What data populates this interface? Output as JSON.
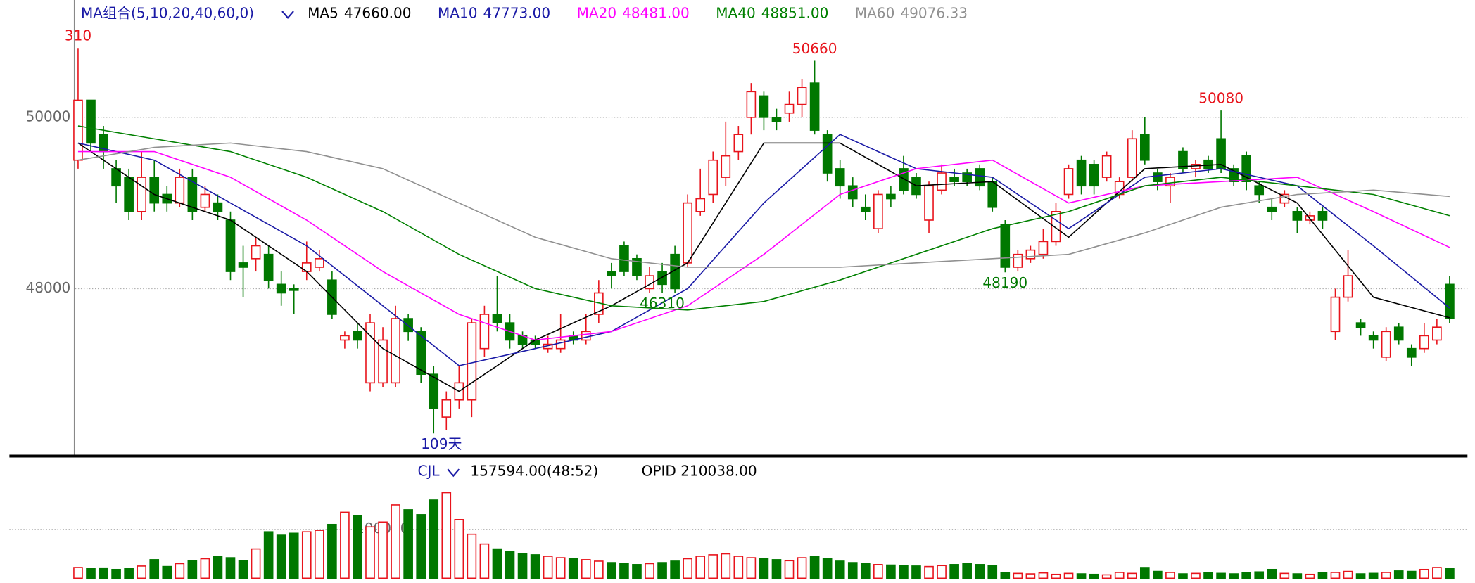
{
  "chart_data": {
    "type": "candlestick",
    "title": "MA组合(5,10,20,40,60,0)",
    "up_color": "#e8141c",
    "down_color": "#007800",
    "ylim": [
      46100,
      51370
    ],
    "yticks": [
      48000,
      50000
    ],
    "grid": true,
    "open": [
      49500,
      50200,
      49800,
      49400,
      49300,
      48900,
      49300,
      49100,
      49000,
      49300,
      48950,
      49000,
      48800,
      48300,
      48350,
      48400,
      48050,
      48000,
      48200,
      48250,
      48100,
      47400,
      47500,
      46900,
      46900,
      46900,
      47650,
      47500,
      47000,
      46500,
      46700,
      46700,
      47300,
      47700,
      47600,
      47450,
      47400,
      47300,
      47300,
      47450,
      47400,
      47700,
      48200,
      48500,
      48350,
      48000,
      48200,
      48400,
      48300,
      48900,
      49100,
      49300,
      49600,
      50000,
      50250,
      50000,
      50050,
      50150,
      50400,
      49800,
      49400,
      49200,
      48950,
      48700,
      49100,
      49400,
      49300,
      48800,
      49150,
      49300,
      49350,
      49400,
      49250,
      48750,
      48250,
      48350,
      48400,
      48550,
      49100,
      49500,
      49450,
      49300,
      49100,
      49300,
      49800,
      49350,
      49200,
      49600,
      49400,
      49500,
      49750,
      49400,
      49550,
      49200,
      48950,
      49000,
      48900,
      48800,
      48900,
      47500,
      47900,
      47600,
      47450,
      47200,
      47550,
      47300,
      47300,
      47400,
      48050
    ],
    "high": [
      50810,
      50200,
      49900,
      49500,
      49400,
      49600,
      49500,
      49200,
      49400,
      49400,
      49200,
      49100,
      48900,
      48500,
      48600,
      48500,
      48200,
      48050,
      48550,
      48450,
      48200,
      47500,
      47600,
      47700,
      47550,
      47800,
      47700,
      47550,
      47100,
      46800,
      47100,
      47650,
      47800,
      48150,
      47700,
      47500,
      47450,
      47450,
      47700,
      47500,
      47700,
      48100,
      48300,
      48550,
      48400,
      48250,
      48300,
      48500,
      49100,
      49400,
      49600,
      49950,
      49900,
      50400,
      50300,
      50100,
      50300,
      50450,
      50660,
      49850,
      49500,
      49300,
      49100,
      49150,
      49200,
      49550,
      49350,
      49250,
      49450,
      49400,
      49400,
      49450,
      49300,
      48800,
      48450,
      48500,
      48700,
      49000,
      49450,
      49550,
      49500,
      49600,
      49300,
      49850,
      50000,
      49400,
      49350,
      49650,
      49500,
      49550,
      50080,
      49450,
      49600,
      49250,
      49050,
      49150,
      48950,
      48900,
      48950,
      48000,
      48450,
      47650,
      47500,
      47550,
      47600,
      47350,
      47600,
      47650,
      48150
    ],
    "low": [
      49400,
      49600,
      49400,
      49000,
      48800,
      48800,
      48900,
      48900,
      48950,
      48800,
      48900,
      48800,
      48100,
      47900,
      48200,
      48000,
      47800,
      47700,
      48100,
      48200,
      47650,
      47300,
      47300,
      46800,
      46850,
      46850,
      47390,
      46900,
      46310,
      46350,
      46600,
      46500,
      47200,
      47500,
      47300,
      47300,
      47300,
      47250,
      47250,
      47350,
      47350,
      47600,
      48000,
      48150,
      48100,
      47950,
      47950,
      47950,
      48250,
      48850,
      49000,
      49200,
      49500,
      49800,
      49850,
      49850,
      49950,
      50000,
      49800,
      49250,
      49050,
      48950,
      48800,
      48650,
      48950,
      49100,
      49050,
      48650,
      49100,
      49200,
      49200,
      49150,
      48900,
      48190,
      48200,
      48300,
      48350,
      48500,
      49050,
      49100,
      49100,
      49250,
      49050,
      49250,
      49450,
      49150,
      49000,
      49350,
      49300,
      49350,
      49350,
      49200,
      49150,
      49000,
      48800,
      48950,
      48650,
      48750,
      48700,
      47400,
      47850,
      47450,
      47300,
      47150,
      47350,
      47100,
      47250,
      47350,
      47600
    ],
    "close": [
      50200,
      49700,
      49600,
      49200,
      48900,
      49300,
      49000,
      49000,
      49300,
      48900,
      49100,
      48900,
      48200,
      48250,
      48500,
      48100,
      47950,
      47980,
      48300,
      48350,
      47700,
      47450,
      47400,
      47600,
      47400,
      47650,
      47500,
      47000,
      46600,
      46700,
      46900,
      47600,
      47700,
      47600,
      47400,
      47350,
      47350,
      47350,
      47400,
      47400,
      47500,
      47950,
      48150,
      48200,
      48150,
      48150,
      48050,
      48000,
      49000,
      49050,
      49500,
      49550,
      49800,
      50300,
      50000,
      49950,
      50150,
      50350,
      49850,
      49350,
      49200,
      49050,
      48900,
      49100,
      49050,
      49150,
      49100,
      49200,
      49350,
      49250,
      49250,
      49200,
      48950,
      48250,
      48400,
      48450,
      48550,
      48900,
      49400,
      49200,
      49200,
      49550,
      49250,
      49750,
      49500,
      49250,
      49300,
      49400,
      49450,
      49400,
      49400,
      49250,
      49250,
      49100,
      48900,
      49100,
      48800,
      48850,
      48800,
      47900,
      48150,
      47550,
      47400,
      47500,
      47400,
      47200,
      47450,
      47550,
      47650
    ],
    "ma_x": [
      0,
      6,
      12,
      18,
      24,
      30,
      36,
      42,
      48,
      54,
      60,
      66,
      72,
      78,
      84,
      90,
      96,
      102,
      108
    ],
    "series": [
      {
        "name": "MA5",
        "value_label": "47660.00",
        "color": "#000000",
        "values": [
          49700,
          49100,
          48800,
          48200,
          47300,
          46800,
          47400,
          47800,
          48300,
          49700,
          49700,
          49200,
          49250,
          48600,
          49400,
          49450,
          49000,
          47900,
          47660
        ]
      },
      {
        "name": "MA10",
        "value_label": "47773.00",
        "color": "#1a1aa6",
        "values": [
          49700,
          49500,
          49000,
          48500,
          47800,
          47100,
          47300,
          47500,
          48000,
          49000,
          49800,
          49400,
          49300,
          48700,
          49300,
          49400,
          49200,
          48500,
          47773
        ]
      },
      {
        "name": "MA20",
        "value_label": "48481.00",
        "color": "#ff00ff",
        "values": [
          49600,
          49600,
          49300,
          48800,
          48200,
          47700,
          47400,
          47500,
          47800,
          48400,
          49100,
          49400,
          49500,
          49000,
          49200,
          49250,
          49300,
          48900,
          48481
        ]
      },
      {
        "name": "MA40",
        "value_label": "48851.00",
        "color": "#008000",
        "values": [
          49900,
          49750,
          49600,
          49300,
          48900,
          48400,
          48000,
          47800,
          47750,
          47850,
          48100,
          48400,
          48700,
          48900,
          49200,
          49300,
          49200,
          49100,
          48851
        ]
      },
      {
        "name": "MA60",
        "value_label": "49076.33",
        "color": "#909090",
        "values": [
          49500,
          49650,
          49700,
          49600,
          49400,
          49000,
          48600,
          48350,
          48250,
          48250,
          48250,
          48300,
          48350,
          48400,
          48650,
          48950,
          49100,
          49150,
          49076.33
        ]
      }
    ],
    "annotations": [
      {
        "text": "310",
        "color": "#e8141c",
        "index": 0
      },
      {
        "text": "50660",
        "color": "#e8141c",
        "index": 58
      },
      {
        "text": "50080",
        "color": "#e8141c",
        "index": 90
      },
      {
        "text": "48190",
        "color": "#007800",
        "index": 73
      },
      {
        "text": "109天",
        "color": "#1a1aa6",
        "index": 27
      },
      {
        "text": "46310",
        "color": "#007800",
        "index": 46
      }
    ],
    "volume": {
      "name": "CJL",
      "header_value": "157594.00(48:52)",
      "opid": "OPID 210038.00",
      "ylim": [
        0,
        246000
      ],
      "yticks": [
        100000
      ],
      "values": [
        22000,
        20000,
        21000,
        18000,
        20000,
        25000,
        38000,
        24000,
        30000,
        36000,
        40000,
        45000,
        42000,
        36000,
        60000,
        95000,
        88000,
        92000,
        95000,
        98000,
        110000,
        135000,
        128000,
        105000,
        115000,
        150000,
        140000,
        130000,
        160000,
        175000,
        120000,
        90000,
        70000,
        60000,
        55000,
        50000,
        48000,
        45000,
        42000,
        40000,
        38000,
        35000,
        32000,
        30000,
        28000,
        30000,
        32000,
        35000,
        40000,
        45000,
        48000,
        50000,
        45000,
        42000,
        40000,
        38000,
        36000,
        42000,
        45000,
        40000,
        35000,
        32000,
        30000,
        28000,
        27000,
        26000,
        25000,
        24000,
        26000,
        28000,
        30000,
        28000,
        26000,
        12000,
        10000,
        9000,
        11000,
        8000,
        10000,
        9000,
        8000,
        7000,
        12000,
        10000,
        22000,
        14000,
        12000,
        9000,
        10000,
        11000,
        10000,
        9000,
        12000,
        13000,
        18000,
        10000,
        9000,
        8000,
        11000,
        12000,
        14000,
        9000,
        10000,
        12000,
        15000,
        14000,
        18000,
        22000,
        20000
      ]
    }
  }
}
